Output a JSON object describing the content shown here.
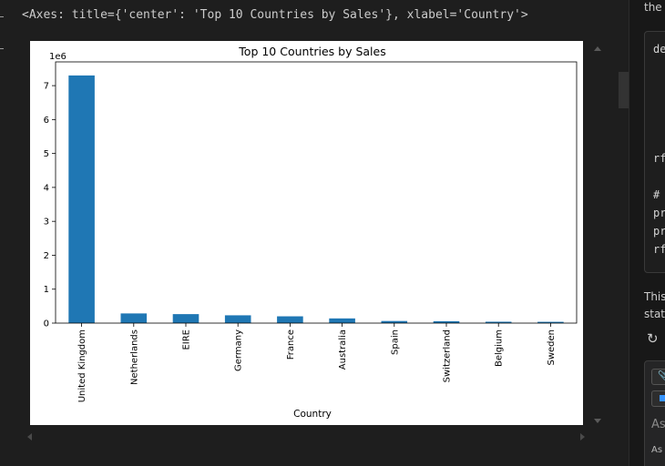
{
  "output": {
    "text": "<Axes: title={'center': 'Top 10 Countries by Sales'}, xlabel='Country'>"
  },
  "chart_data": {
    "type": "bar",
    "title": "Top 10 Countries by Sales",
    "xlabel": "Country",
    "ylabel": "",
    "scale_label": "1e6",
    "categories": [
      "United Kingdom",
      "Netherlands",
      "EIRE",
      "Germany",
      "France",
      "Australia",
      "Spain",
      "Switzerland",
      "Belgium",
      "Sweden"
    ],
    "values": [
      7300000,
      285000,
      265000,
      230000,
      200000,
      138000,
      62000,
      56000,
      41000,
      38000
    ],
    "ylim": [
      0,
      7700000
    ],
    "yticks": [
      "0",
      "1",
      "2",
      "3",
      "4",
      "5",
      "6",
      "7"
    ],
    "bar_color": "#1f77b4",
    "grid": false,
    "legend": "none"
  },
  "right_panel": {
    "top_text": "the c",
    "code_lines": [
      "de",
      "rf",
      "#",
      "pr",
      "pr",
      "rf"
    ],
    "para_line1": "This",
    "para_line2": "stati",
    "refresh_icon": "refresh-icon",
    "attach_icon": "paperclip-icon",
    "ask_text": "Ask",
    "ask_small": "As"
  }
}
